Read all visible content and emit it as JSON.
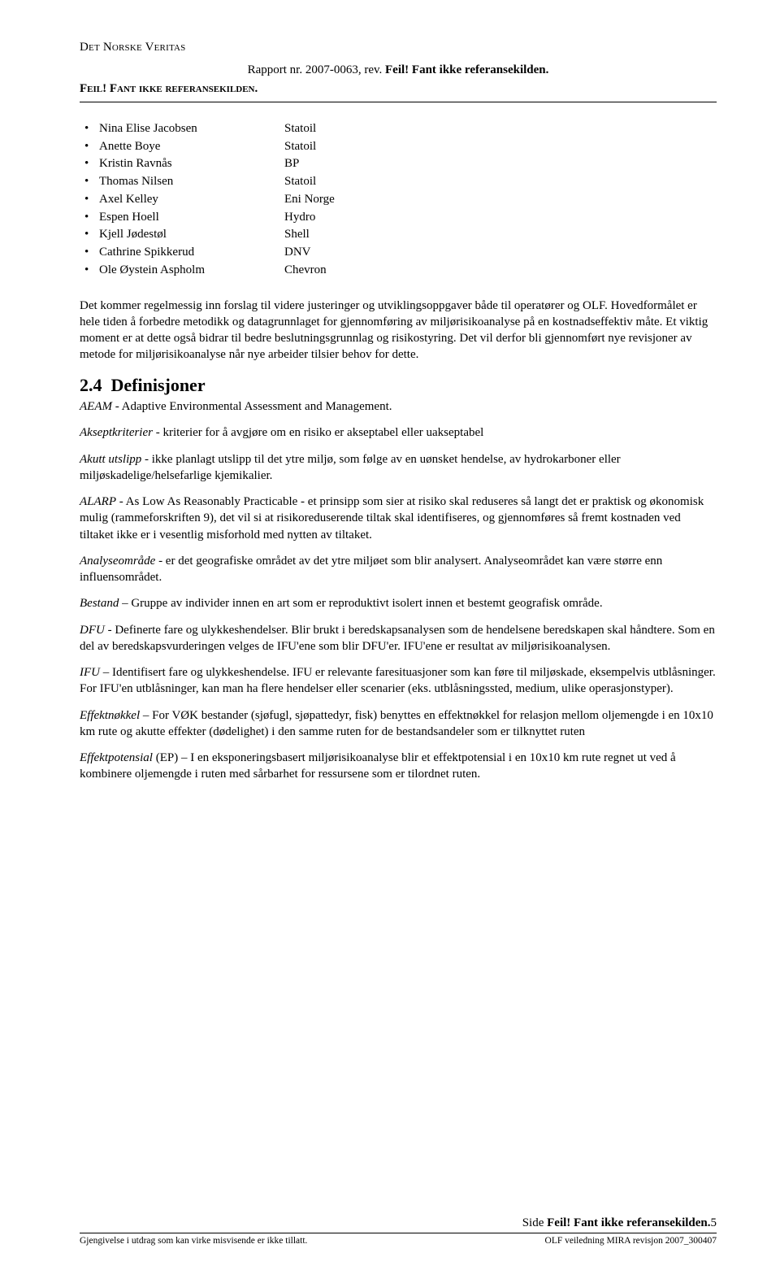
{
  "header": {
    "running": "Det Norske Veritas",
    "report_line_prefix": "Rapport nr. 2007-0063, rev. ",
    "report_line_error": "Feil! Fant ikke referansekilden.",
    "error_caps": "Feil! Fant ikke referansekilden."
  },
  "people": [
    {
      "name": "Nina Elise Jacobsen",
      "org": "Statoil"
    },
    {
      "name": "Anette Boye",
      "org": "Statoil"
    },
    {
      "name": "Kristin Ravnås",
      "org": "BP"
    },
    {
      "name": "Thomas Nilsen",
      "org": "Statoil"
    },
    {
      "name": "Axel Kelley",
      "org": "Eni Norge"
    },
    {
      "name": "Espen Hoell",
      "org": "Hydro"
    },
    {
      "name": "Kjell Jødestøl",
      "org": "Shell"
    },
    {
      "name": "Cathrine Spikkerud",
      "org": "DNV"
    },
    {
      "name": "Ole Øystein Aspholm",
      "org": "Chevron"
    }
  ],
  "intro_paragraph": "Det kommer regelmessig inn forslag til videre justeringer og utviklingsoppgaver både til operatører og OLF. Hovedformålet er hele tiden å forbedre metodikk og datagrunnlaget for gjennomføring av miljørisikoanalyse på en kostnadseffektiv måte. Et viktig moment er at dette også bidrar til bedre beslutningsgrunnlag og risikostyring. Det vil derfor bli gjennomført nye revisjoner av metode for miljørisikoanalyse når nye arbeider tilsier behov for dette.",
  "section": {
    "number": "2.4",
    "title": "Definisjoner"
  },
  "definitions": [
    {
      "term": "AEAM",
      "text": " - Adaptive Environmental Assessment and Management."
    },
    {
      "term": "Akseptkriterier",
      "text": " - kriterier for å avgjøre om en risiko er akseptabel eller uakseptabel"
    },
    {
      "term": "Akutt utslipp",
      "text": " - ikke planlagt utslipp til det ytre miljø, som følge av en uønsket hendelse, av hydrokarboner eller miljøskadelige/helsefarlige kjemikalier."
    },
    {
      "term": "ALARP",
      "text": " - As Low As Reasonably Practicable - et prinsipp som sier at risiko skal reduseres så langt det er praktisk og økonomisk mulig (rammeforskriften 9), det vil si at risikoreduserende tiltak skal identifiseres, og gjennomføres så fremt kostnaden ved tiltaket ikke er i vesentlig misforhold med nytten av tiltaket."
    },
    {
      "term": "Analyseområde",
      "text": " - er det geografiske området av det ytre miljøet som blir analysert. Analyseområdet kan være større enn influensområdet."
    },
    {
      "term": "Bestand",
      "text": " – Gruppe av individer innen en art som er reproduktivt isolert innen et bestemt geografisk område."
    },
    {
      "term": "DFU",
      "text": " - Definerte fare og ulykkeshendelser. Blir brukt i beredskapsanalysen som de hendelsene beredskapen skal håndtere. Som en del av beredskapsvurderingen velges de IFU'ene som blir DFU'er. IFU'ene er resultat av miljørisikoanalysen."
    },
    {
      "term": "IFU",
      "text": " – Identifisert fare og ulykkeshendelse. IFU er relevante faresituasjoner som kan føre til miljøskade, eksempelvis utblåsninger. For IFU'en utblåsninger, kan man ha flere hendelser eller scenarier (eks. utblåsningssted, medium, ulike operasjonstyper)."
    },
    {
      "term": "Effektnøkkel",
      "text": " – For VØK bestander (sjøfugl, sjøpattedyr, fisk) benyttes en effektnøkkel for relasjon mellom oljemengde i en 10x10 km rute og akutte effekter (dødelighet) i den samme ruten for de bestandsandeler som er tilknyttet ruten"
    },
    {
      "term": "Effektpotensial",
      "text": " (EP) – I en eksponeringsbasert miljørisikoanalyse blir et effektpotensial i en 10x10 km rute regnet ut ved å kombinere oljemengde i ruten med sårbarhet for ressursene som er tilordnet ruten."
    }
  ],
  "footer": {
    "side_prefix": "Side ",
    "side_bold": "Feil! Fant ikke referansekilden.",
    "side_suffix": "5",
    "left": "Gjengivelse i utdrag som kan virke misvisende er ikke tillatt.",
    "right": "OLF veiledning MIRA revisjon 2007_300407"
  }
}
